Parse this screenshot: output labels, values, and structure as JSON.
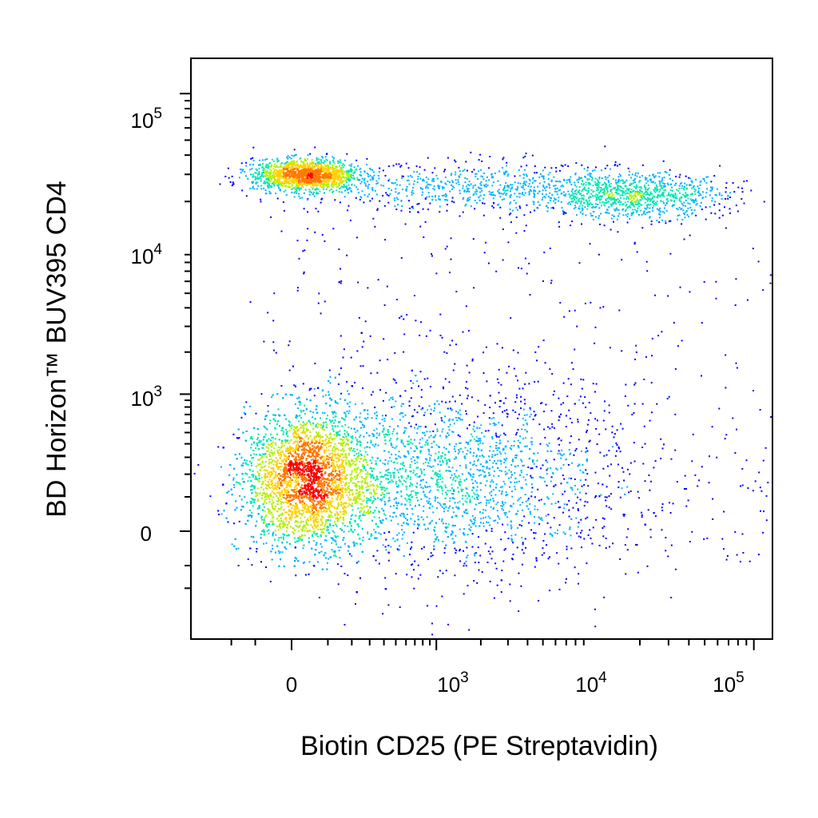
{
  "chart_data": {
    "type": "scatter",
    "subtype": "flow-cytometry-density-dot-plot",
    "xlabel": "Biotin CD25 (PE Streptavidin)",
    "ylabel": "BD Horizon™ BUV395 CD4",
    "x_scale": "biexponential",
    "y_scale": "biexponential",
    "x_ticks": [
      {
        "value": 0,
        "base": "0",
        "exp": ""
      },
      {
        "value": 1000,
        "base": "10",
        "exp": "3"
      },
      {
        "value": 10000,
        "base": "10",
        "exp": "4"
      },
      {
        "value": 100000,
        "base": "10",
        "exp": "5"
      }
    ],
    "y_ticks": [
      {
        "value": 0,
        "base": "0",
        "exp": ""
      },
      {
        "value": 1000,
        "base": "10",
        "exp": "3"
      },
      {
        "value": 10000,
        "base": "10",
        "exp": "4"
      },
      {
        "value": 100000,
        "base": "10",
        "exp": "5"
      }
    ],
    "xlim": [
      -250,
      200000
    ],
    "ylim": [
      -250,
      200000
    ],
    "grid": false,
    "legend": "none",
    "color_scale": [
      "#0000ff",
      "#00b4ff",
      "#00e6b4",
      "#b4f000",
      "#ffd200",
      "#ff7800",
      "#ff0000"
    ],
    "populations": [
      {
        "name_shown": false,
        "center_x": 30,
        "center_y": 180,
        "count": 9000,
        "density": "highest"
      },
      {
        "name_shown": false,
        "center_x": 30,
        "center_y": 30000,
        "count": 1600,
        "density": "high"
      },
      {
        "name_shown": false,
        "center_x": 18000,
        "center_y": 22000,
        "count": 900,
        "density": "medium"
      },
      {
        "name_shown": false,
        "center_x": 2500,
        "center_y": 25000,
        "count": 700,
        "density": "low"
      },
      {
        "name_shown": false,
        "center_x": 1500,
        "center_y": 200,
        "count": 1500,
        "density": "low"
      }
    ]
  }
}
